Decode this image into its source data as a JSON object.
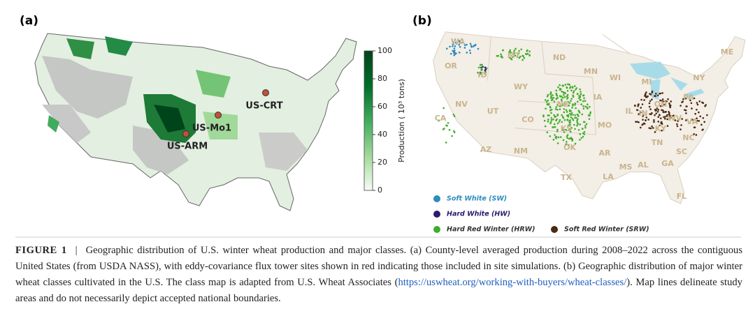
{
  "panels": [
    {
      "label": "(a)",
      "sites": [
        {
          "name": "US-CRT"
        },
        {
          "name": "US-Mo1"
        },
        {
          "name": "US-ARM"
        }
      ],
      "site_color": "#c0503c",
      "colorbar": {
        "title": "Production ( 10³ tons)",
        "lim": [
          0,
          100
        ],
        "ticks": [
          0,
          20,
          40,
          60,
          80,
          100
        ],
        "colors": [
          "#f7fcf5",
          "#a1d99b",
          "#41ab5d",
          "#006d2c",
          "#00441b"
        ]
      }
    },
    {
      "label": "(b)",
      "states": [
        "WA",
        "OR",
        "ID",
        "MT",
        "ND",
        "WY",
        "NV",
        "UT",
        "CO",
        "CA",
        "AZ",
        "NM",
        "NE",
        "KS",
        "OK",
        "TX",
        "MN",
        "WI",
        "IA",
        "MO",
        "AR",
        "LA",
        "MI",
        "IL",
        "IN",
        "OH",
        "KY",
        "TN",
        "MS",
        "AL",
        "GA",
        "FL",
        "SC",
        "NC",
        "VA",
        "WV",
        "PA",
        "NY",
        "ME"
      ],
      "legend": [
        {
          "name": "Soft White (SW)",
          "color": "#2b8cbe"
        },
        {
          "name": "Hard White (HW)",
          "color": "#2d1a6e"
        },
        {
          "name": "Hard Red Winter (HRW)",
          "color": "#3fae2a"
        },
        {
          "name": "Soft Red Winter (SRW)",
          "color": "#4a2a12"
        }
      ]
    }
  ],
  "caption": {
    "label": "FIGURE 1",
    "separator": "|",
    "text": "Geographic distribution of U.S. winter wheat production and major classes. (a) County-level averaged production during 2008–2022 across the contiguous United States (from USDA NASS), with eddy-covariance flux tower sites shown in red indicating those included in site simulations. (b) Geographic distribution of major winter wheat classes cultivated in the U.S. The class map is adapted from U.S. Wheat Associates (",
    "link": "https://uswheat.org/working-with-buyers/wheat-classes/",
    "text_after": "). Map lines delineate study areas and do not necessarily depict accepted national boundaries."
  }
}
